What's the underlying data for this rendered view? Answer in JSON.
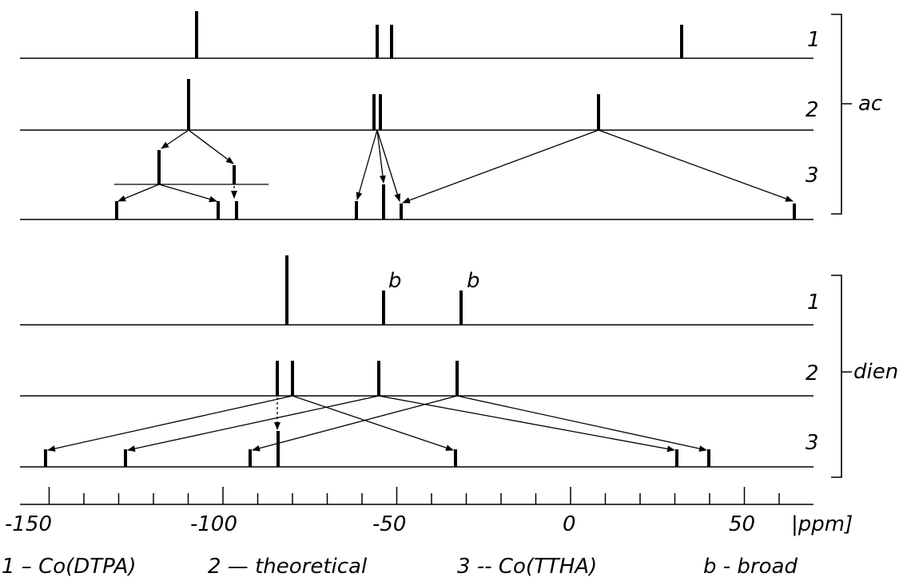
{
  "panel_ac": {
    "name": "ac",
    "row_labels": [
      "1",
      "2",
      "3"
    ],
    "row1_peaks_ppm": [
      -108,
      -55,
      -51,
      32
    ],
    "row2_peaks_ppm": [
      -110,
      -55,
      -53,
      8
    ],
    "row3_peaks_ppm": [
      -130,
      -101,
      -96,
      -61,
      -53,
      -48,
      64
    ]
  },
  "panel_dien": {
    "name": "dien",
    "row_labels": [
      "1",
      "2",
      "3"
    ],
    "row1_peaks_ppm": [
      -80,
      -54,
      -30
    ],
    "row1_broad_mark": "b",
    "row2_peaks_ppm": [
      -82,
      -79,
      -54,
      -30
    ],
    "row3_peaks_ppm": [
      -150,
      -128,
      -92,
      -82,
      -32,
      31,
      40
    ]
  },
  "axis": {
    "unit": "ppm",
    "tick_labels": [
      "-150",
      "-100",
      "-50",
      "0",
      "50"
    ]
  },
  "legend": {
    "item1": "1 –  Co(DTPA)",
    "item2": "2 — theoretical",
    "item3": "3 -- Co(TTHA)",
    "item4": "b  -  broad"
  }
}
